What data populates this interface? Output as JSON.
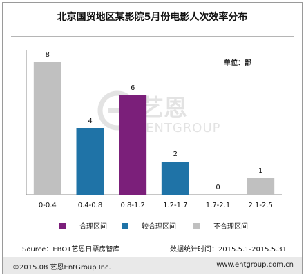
{
  "page": {
    "title": "北京国贸地区某影院5月份电影人次效率分布",
    "unit": "单位：部",
    "source": "Source：EBOT艺恩日票房智库",
    "stats_period": "数据统计时间：2015.5.1-2015.5.31",
    "copyright": "©2015.08  艺恩EntGroup Inc.",
    "website": "www.entgroup.com.cn",
    "watermark_cn": "艺恩",
    "watermark_en": "ENTGROUP"
  },
  "chart_data": {
    "type": "bar",
    "title": "北京国贸地区某影院5月份电影人次效率分布",
    "xlabel": "",
    "ylabel": "",
    "unit": "单位：部",
    "categories": [
      "0-0.4",
      "0.4-0.8",
      "0.8-1.2",
      "1.2-1.7",
      "1.7-2.1",
      "2.1-2.5"
    ],
    "values": [
      8,
      4,
      6,
      2,
      0,
      1
    ],
    "data_labels": [
      "8",
      "4",
      "6",
      "2",
      "0",
      "1"
    ],
    "bar_groups": [
      "不合理区间",
      "较合理区间",
      "合理区间",
      "较合理区间",
      "不合理区间",
      "不合理区间"
    ],
    "ylim": [
      0,
      8
    ],
    "grid": false,
    "legend_position": "bottom",
    "legend": [
      {
        "name": "合理区间",
        "color": "#7b1f7a"
      },
      {
        "name": "较合理区间",
        "color": "#1f73a7"
      },
      {
        "name": "不合理区间",
        "color": "#c0c0c0"
      }
    ],
    "colors": {
      "合理区间": "#7b1f7a",
      "较合理区间": "#1f73a7",
      "不合理区间": "#c0c0c0",
      "axis": "#8c8c8c"
    }
  }
}
